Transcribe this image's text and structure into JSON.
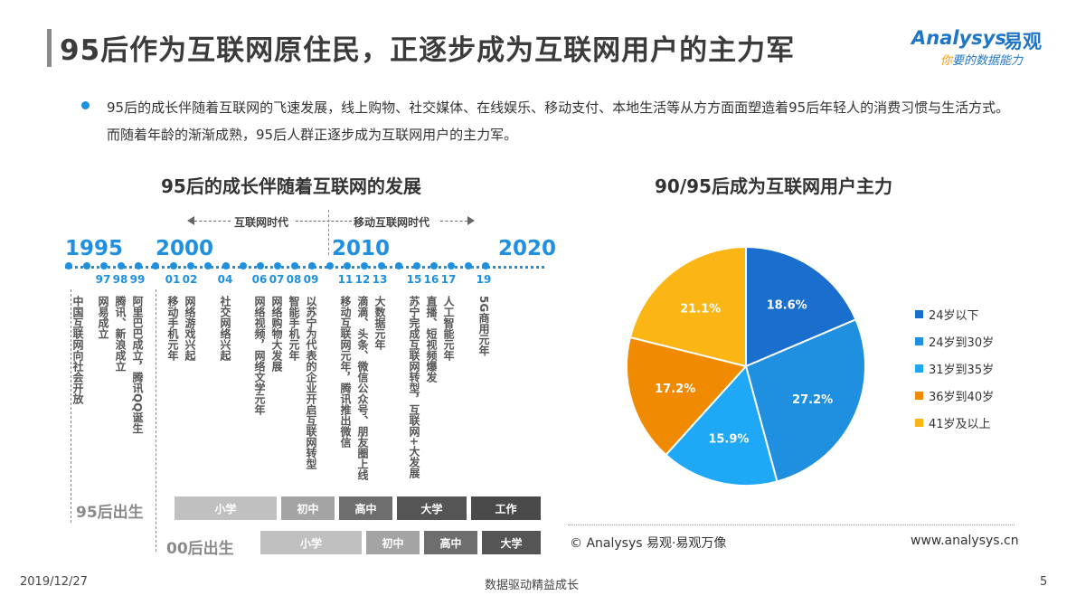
{
  "header": {
    "title": "95后作为互联网原住民，正逐步成为互联网用户的主力军",
    "logo_en": "Analysys",
    "logo_cn": "易观",
    "slogan_ni": "你",
    "slogan_rest": "要的数据能力"
  },
  "intro": {
    "text": "95后的成长伴随着互联网的飞速发展，线上购物、社交媒体、在线娱乐、移动支付、本地生活等从方方面面塑造着95后年轻人的消费习惯与生活方式。而随着年龄的渐渐成熟，95后人群正逐步成为互联网用户的主力军。"
  },
  "timeline": {
    "title": "95后的成长伴随着互联网的发展",
    "era_internet": "互联网时代",
    "era_mobile": "移动互联网时代",
    "decades": [
      "1995",
      "2000",
      "2010",
      "2020"
    ],
    "events": [
      {
        "year": "",
        "text": "中国互联网向社会开放"
      },
      {
        "year": "97",
        "text": "网易成立"
      },
      {
        "year": "98",
        "text": "腾讯、新浪成立"
      },
      {
        "year": "99",
        "text": "阿里巴巴成立，腾讯QQ诞生"
      },
      {
        "year": "01",
        "text": "移动手机元年"
      },
      {
        "year": "02",
        "text": "网络游戏兴起"
      },
      {
        "year": "04",
        "text": "社交网络兴起"
      },
      {
        "year": "06",
        "text": "网络视频，网络文学元年"
      },
      {
        "year": "07",
        "text": "网络购物大发展"
      },
      {
        "year": "08",
        "text": "智能手机元年"
      },
      {
        "year": "09",
        "text": "以苏宁为代表的企业开启互联网转型"
      },
      {
        "year": "11",
        "text": "移动互联网元年，腾讯推出微信"
      },
      {
        "year": "12",
        "text": "滴滴、头条、微信公众号、朋友圈上线"
      },
      {
        "year": "13",
        "text": "大数据元年"
      },
      {
        "year": "15",
        "text": "苏宁完成互联网转型，互联网+大发展"
      },
      {
        "year": "16",
        "text": "直播、短视频爆发"
      },
      {
        "year": "17",
        "text": "人工智能元年"
      },
      {
        "year": "19",
        "text": "5G商用元年"
      }
    ],
    "cohort_95": "95后出生",
    "cohort_00": "00后出生",
    "stages_95": [
      "小学",
      "初中",
      "高中",
      "大学",
      "工作"
    ],
    "stages_00": [
      "小学",
      "初中",
      "高中",
      "大学"
    ]
  },
  "chart_data": {
    "type": "pie",
    "title": "90/95后成为互联网用户主力",
    "categories": [
      "24岁以下",
      "24岁到30岁",
      "31岁到35岁",
      "36岁到40岁",
      "41岁及以上"
    ],
    "values": [
      18.6,
      27.2,
      15.9,
      17.2,
      21.1
    ],
    "value_labels": [
      "18.6%",
      "27.2%",
      "15.9%",
      "17.2%",
      "21.1%"
    ],
    "colors": [
      "#1a6fce",
      "#1f90e0",
      "#1ea8f5",
      "#f08a00",
      "#fbb615"
    ],
    "legend_position": "right"
  },
  "source": {
    "copyright": "© Analysys 易观·易观万像",
    "site": "www.analysys.cn"
  },
  "footer": {
    "date": "2019/12/27",
    "center": "数据驱动精益成长",
    "page": "5"
  }
}
